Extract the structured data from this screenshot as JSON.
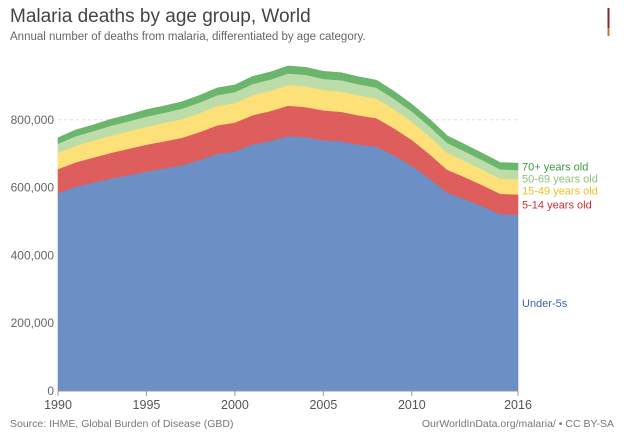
{
  "title": "Malaria deaths by age group, World",
  "subtitle": "Annual number of deaths from malaria, differentiated by age category.",
  "footer": {
    "source": "Source: IHME, Global Burden of Disease (GBD)",
    "credit": "OurWorldInData.org/malaria/ • CC BY-SA"
  },
  "chart_data": {
    "type": "area",
    "stacked": true,
    "title": "Malaria deaths by age group, World",
    "xlabel": "",
    "ylabel": "",
    "x": [
      1990,
      1991,
      1992,
      1993,
      1994,
      1995,
      1996,
      1997,
      1998,
      1999,
      2000,
      2001,
      2002,
      2003,
      2004,
      2005,
      2006,
      2007,
      2008,
      2009,
      2010,
      2011,
      2012,
      2013,
      2014,
      2015,
      2016
    ],
    "xlim": [
      1990,
      2016
    ],
    "ylim": [
      0,
      1000000
    ],
    "x_ticks": [
      "1990",
      "1995",
      "2000",
      "2005",
      "2010",
      "2016"
    ],
    "x_tick_values": [
      1990,
      1995,
      2000,
      2005,
      2010,
      2016
    ],
    "y_ticks": [
      "0",
      "200,000",
      "400,000",
      "600,000",
      "800,000"
    ],
    "y_tick_values": [
      0,
      200000,
      400000,
      600000,
      800000
    ],
    "grid": "horizontal",
    "legend": "labels at right end of series",
    "series": [
      {
        "name": "Under-5s",
        "color": "#6c8fc5",
        "label_color": "#3b64a8",
        "values": [
          585000,
          603000,
          615000,
          627000,
          637000,
          648000,
          657000,
          666000,
          682000,
          700000,
          707000,
          728000,
          738000,
          752000,
          749000,
          740000,
          737000,
          727000,
          721000,
          695000,
          665000,
          627000,
          585000,
          566000,
          545000,
          522000,
          520000
        ]
      },
      {
        "name": "5-14 years old",
        "color": "#de5e5e",
        "label_color": "#cf2f2f",
        "values": [
          70000,
          72000,
          74000,
          76000,
          78000,
          79000,
          80000,
          81000,
          82000,
          84000,
          85000,
          86000,
          88000,
          90000,
          89000,
          88000,
          87000,
          86000,
          84000,
          80000,
          76000,
          72000,
          68000,
          65000,
          62000,
          60000,
          60000
        ]
      },
      {
        "name": "15-49 years old",
        "color": "#fde178",
        "label_color": "#e8c120",
        "values": [
          48000,
          49000,
          50000,
          51000,
          52000,
          53000,
          54000,
          55000,
          56000,
          57000,
          58000,
          59000,
          60000,
          61000,
          61000,
          60000,
          60000,
          59000,
          58000,
          56000,
          54000,
          52000,
          50000,
          48000,
          46000,
          45000,
          45000
        ]
      },
      {
        "name": "50-69 years old",
        "color": "#bcdcaa",
        "label_color": "#8fc07a",
        "values": [
          27000,
          28000,
          28000,
          29000,
          29000,
          30000,
          30000,
          31000,
          31000,
          32000,
          32000,
          33000,
          33000,
          34000,
          34000,
          33000,
          33000,
          33000,
          32000,
          31000,
          30000,
          30000,
          29000,
          28000,
          28000,
          27000,
          27000
        ]
      },
      {
        "name": "70+ years old",
        "color": "#6bb56d",
        "label_color": "#3a9a3d",
        "values": [
          17000,
          18000,
          18000,
          19000,
          19000,
          20000,
          20000,
          20000,
          21000,
          21000,
          21000,
          22000,
          22000,
          22000,
          22000,
          22000,
          22000,
          22000,
          22000,
          22000,
          21000,
          21000,
          21000,
          20000,
          20000,
          20000,
          20000
        ]
      }
    ]
  }
}
